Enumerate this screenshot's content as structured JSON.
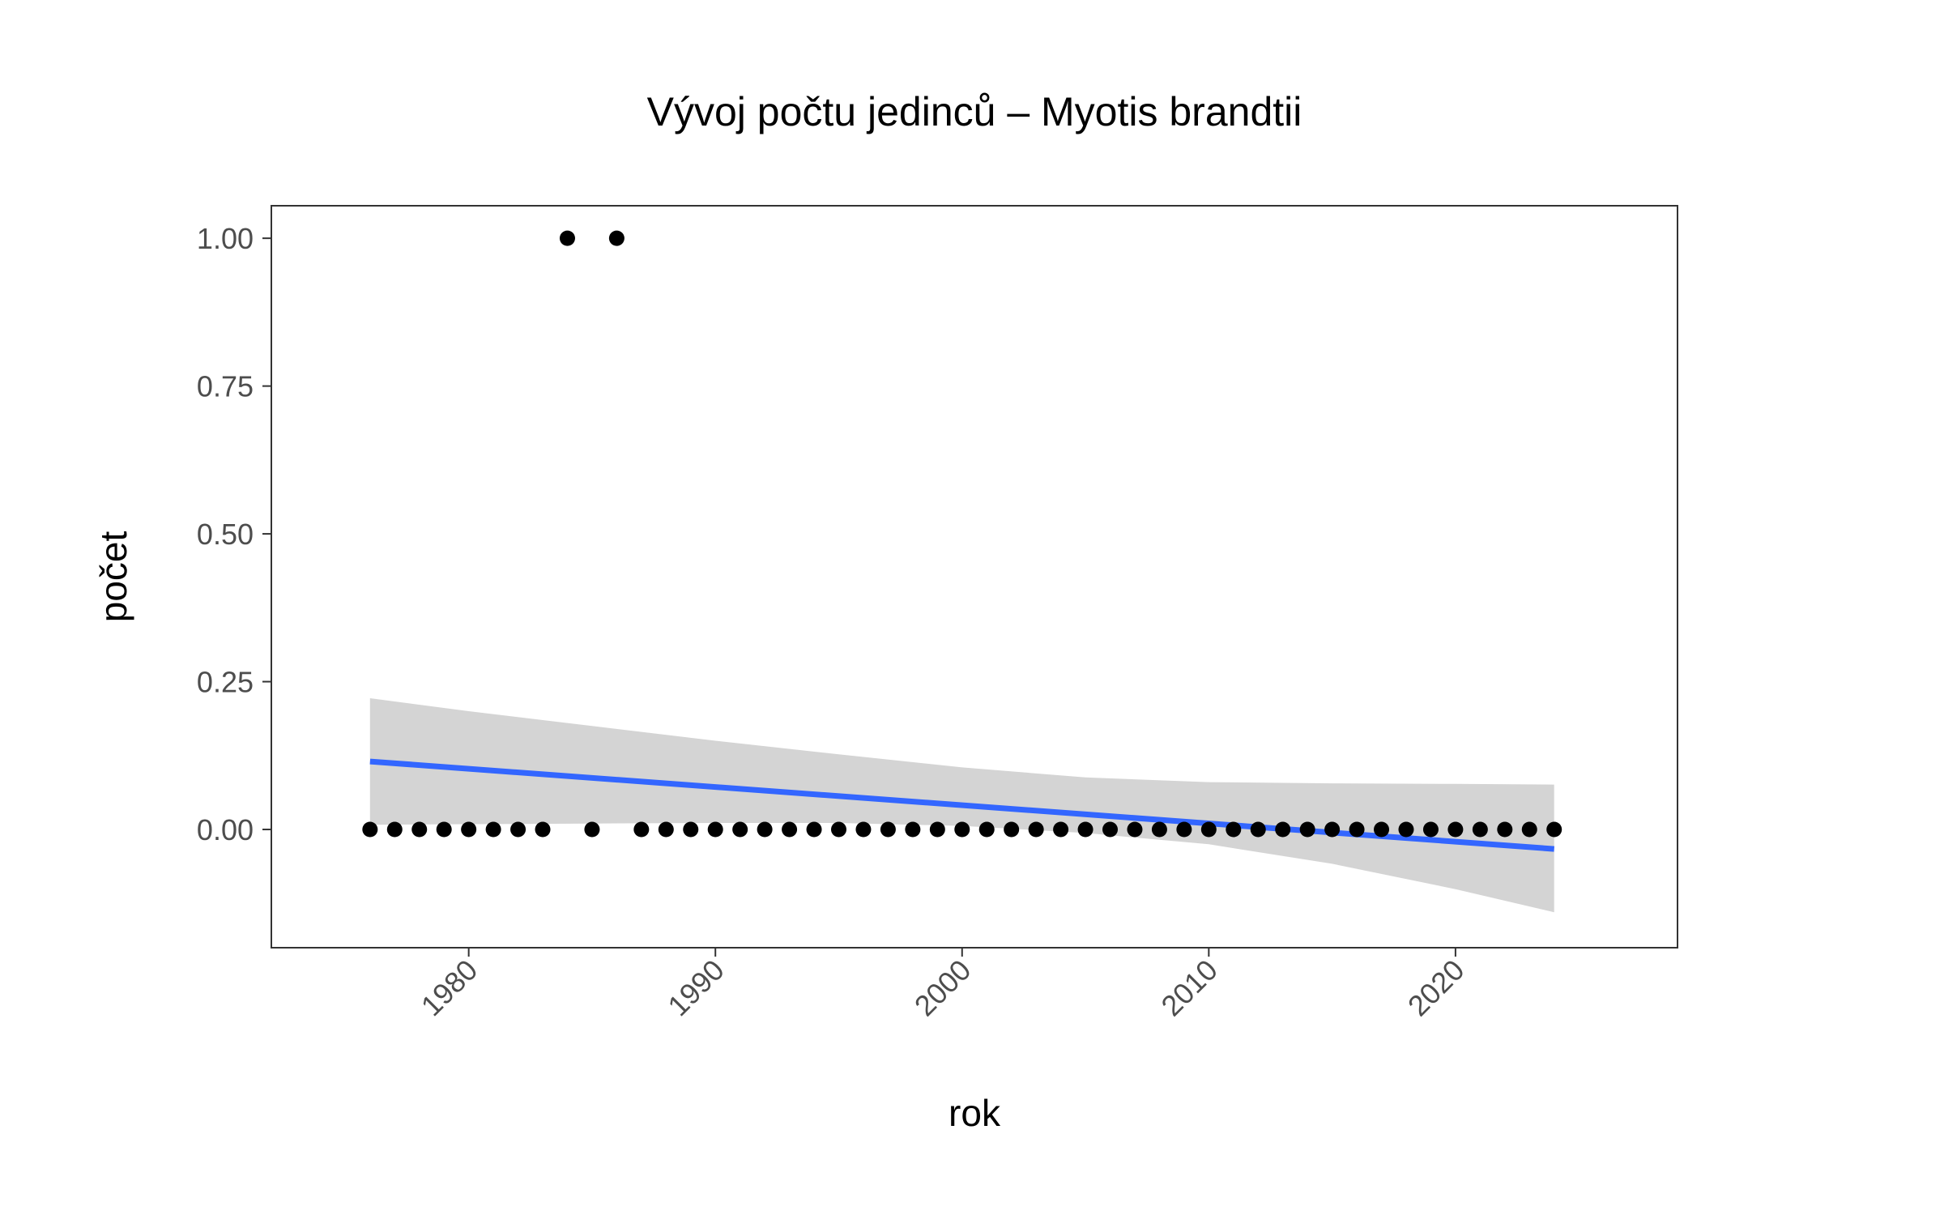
{
  "chart_data": {
    "type": "scatter",
    "title": "Vývoj počtu jedinců – Myotis brandtii",
    "xlabel": "rok",
    "ylabel": "počet",
    "xlim": [
      1972,
      2029
    ],
    "ylim": [
      -0.2,
      1.055
    ],
    "x_ticks": [
      1980,
      1990,
      2000,
      2010,
      2020
    ],
    "x_tick_labels": [
      "1980",
      "1990",
      "2000",
      "2010",
      "2020"
    ],
    "y_ticks": [
      0,
      0.25,
      0.5,
      0.75,
      1
    ],
    "y_tick_labels": [
      "0.00",
      "0.25",
      "0.50",
      "0.75",
      "1.00"
    ],
    "grid": false,
    "legend": "none",
    "colors": {
      "points": "#000000",
      "trend_line": "#3366FF",
      "confidence_band": "#d4d4d4",
      "panel_border": "#333333"
    },
    "points": [
      {
        "x": 1976,
        "y": 0
      },
      {
        "x": 1977,
        "y": 0
      },
      {
        "x": 1978,
        "y": 0
      },
      {
        "x": 1979,
        "y": 0
      },
      {
        "x": 1980,
        "y": 0
      },
      {
        "x": 1981,
        "y": 0
      },
      {
        "x": 1982,
        "y": 0
      },
      {
        "x": 1983,
        "y": 0
      },
      {
        "x": 1984,
        "y": 1
      },
      {
        "x": 1985,
        "y": 0
      },
      {
        "x": 1986,
        "y": 1
      },
      {
        "x": 1987,
        "y": 0
      },
      {
        "x": 1988,
        "y": 0
      },
      {
        "x": 1989,
        "y": 0
      },
      {
        "x": 1990,
        "y": 0
      },
      {
        "x": 1991,
        "y": 0
      },
      {
        "x": 1992,
        "y": 0
      },
      {
        "x": 1993,
        "y": 0
      },
      {
        "x": 1994,
        "y": 0
      },
      {
        "x": 1995,
        "y": 0
      },
      {
        "x": 1996,
        "y": 0
      },
      {
        "x": 1997,
        "y": 0
      },
      {
        "x": 1998,
        "y": 0
      },
      {
        "x": 1999,
        "y": 0
      },
      {
        "x": 2000,
        "y": 0
      },
      {
        "x": 2001,
        "y": 0
      },
      {
        "x": 2002,
        "y": 0
      },
      {
        "x": 2003,
        "y": 0
      },
      {
        "x": 2004,
        "y": 0
      },
      {
        "x": 2005,
        "y": 0
      },
      {
        "x": 2006,
        "y": 0
      },
      {
        "x": 2007,
        "y": 0
      },
      {
        "x": 2008,
        "y": 0
      },
      {
        "x": 2009,
        "y": 0
      },
      {
        "x": 2010,
        "y": 0
      },
      {
        "x": 2011,
        "y": 0
      },
      {
        "x": 2012,
        "y": 0
      },
      {
        "x": 2013,
        "y": 0
      },
      {
        "x": 2014,
        "y": 0
      },
      {
        "x": 2015,
        "y": 0
      },
      {
        "x": 2016,
        "y": 0
      },
      {
        "x": 2017,
        "y": 0
      },
      {
        "x": 2018,
        "y": 0
      },
      {
        "x": 2019,
        "y": 0
      },
      {
        "x": 2020,
        "y": 0
      },
      {
        "x": 2021,
        "y": 0
      },
      {
        "x": 2022,
        "y": 0
      },
      {
        "x": 2023,
        "y": 0
      },
      {
        "x": 2024,
        "y": 0
      }
    ],
    "trend_line": [
      {
        "x": 1976,
        "y": 0.115
      },
      {
        "x": 2024,
        "y": -0.033
      }
    ],
    "confidence_band": [
      {
        "x": 1976,
        "lower": 0.008,
        "upper": 0.222
      },
      {
        "x": 1980,
        "lower": 0.009,
        "upper": 0.2
      },
      {
        "x": 1985,
        "lower": 0.01,
        "upper": 0.175
      },
      {
        "x": 1990,
        "lower": 0.011,
        "upper": 0.15
      },
      {
        "x": 1995,
        "lower": 0.011,
        "upper": 0.127
      },
      {
        "x": 2000,
        "lower": 0.006,
        "upper": 0.105
      },
      {
        "x": 2005,
        "lower": -0.006,
        "upper": 0.088
      },
      {
        "x": 2010,
        "lower": -0.025,
        "upper": 0.08
      },
      {
        "x": 2015,
        "lower": -0.058,
        "upper": 0.078
      },
      {
        "x": 2020,
        "lower": -0.101,
        "upper": 0.077
      },
      {
        "x": 2024,
        "lower": -0.14,
        "upper": 0.076
      }
    ]
  }
}
